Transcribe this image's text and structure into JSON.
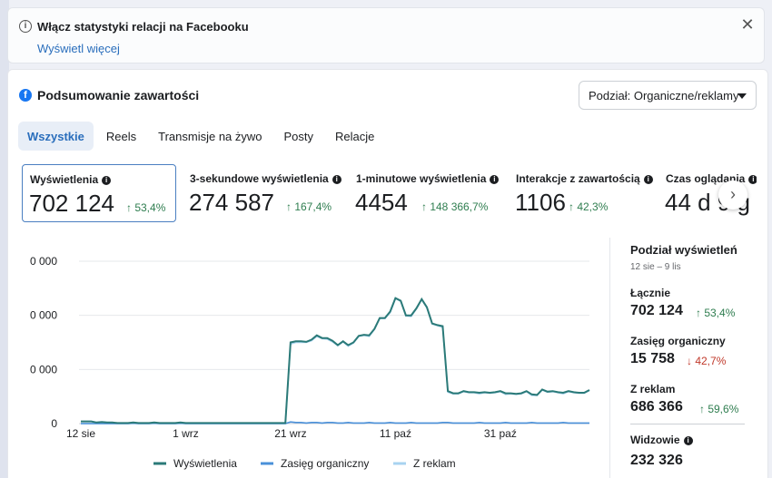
{
  "banner": {
    "title": "Włącz statystyki relacji na Facebooku",
    "link": "Wyświetl więcej",
    "close_icon": "close-icon"
  },
  "card": {
    "title": "Podsumowanie zawartości",
    "dropdown": "Podział: Organiczne/reklamy"
  },
  "tabs": [
    "Wszystkie",
    "Reels",
    "Transmisje na żywo",
    "Posty",
    "Relacje"
  ],
  "metrics": [
    {
      "label": "Wyświetlenia",
      "value": "702 124",
      "change": "↑ 53,4%"
    },
    {
      "label": "3-sekundowe wyświetlenia",
      "value": "274 587",
      "change": "↑ 167,4%"
    },
    {
      "label": "1-minutowe wyświetlenia",
      "value": "4454",
      "change": "↑ 148 366,7%"
    },
    {
      "label": "Interakcje z zawartością",
      "value": "1106",
      "change": "↑ 42,3%"
    },
    {
      "label": "Czas oglądania",
      "value": "44 d 9 g",
      "change": ""
    }
  ],
  "side": {
    "title": "Podział wyświetleń",
    "dates": "12 sie – 9 lis",
    "total_label": "Łącznie",
    "total_value": "702 124",
    "total_change": "↑ 53,4%",
    "organic_label": "Zasięg organiczny",
    "organic_value": "15 758",
    "organic_change": "↓ 42,7%",
    "ads_label": "Z reklam",
    "ads_value": "686 366",
    "ads_change": "↑ 59,6%",
    "viewers_label": "Widzowie",
    "viewers_value": "232 326"
  },
  "chart_data": {
    "type": "line",
    "y_tick_labels": [
      "0 000",
      "0 000",
      "0 000",
      "0"
    ],
    "x_tick_labels": [
      "12 sie",
      "1 wrz",
      "21 wrz",
      "11 paź",
      "31 paź"
    ],
    "series": [
      {
        "name": "Wyświetlenia",
        "color": "#2b7a78",
        "values": [
          4,
          4,
          4,
          2,
          3,
          2,
          2,
          1,
          1,
          1,
          2,
          1,
          1,
          1,
          2,
          1,
          1,
          1,
          1,
          2,
          1,
          1,
          1,
          1,
          1,
          1,
          1,
          1,
          1,
          1,
          1,
          1,
          1,
          1,
          1,
          1,
          1,
          1,
          1,
          1,
          150,
          152,
          152,
          151,
          155,
          163,
          158,
          158,
          153,
          145,
          152,
          145,
          150,
          162,
          164,
          163,
          175,
          195,
          195,
          207,
          232,
          227,
          200,
          200,
          213,
          230,
          215,
          185,
          182,
          180,
          60,
          56,
          56,
          60,
          58,
          58,
          57,
          58,
          57,
          58,
          60,
          56,
          56,
          55,
          56,
          60,
          54,
          53,
          63,
          59,
          60,
          58,
          57,
          60,
          58,
          57,
          57,
          62
        ]
      },
      {
        "name": "Zasięg organiczny",
        "color": "#4a90d9",
        "values": [
          0,
          0,
          0,
          0,
          0,
          0,
          0,
          0,
          0,
          0,
          1,
          0,
          0,
          0,
          1,
          0,
          0,
          0,
          0,
          1,
          0,
          0,
          0,
          0,
          0,
          0,
          0,
          0,
          0,
          0,
          0,
          0,
          0,
          0,
          0,
          0,
          0,
          0,
          0,
          0,
          3,
          2,
          2,
          1,
          2,
          2,
          1,
          2,
          2,
          1,
          1,
          2,
          1,
          1,
          1,
          2,
          1,
          1,
          1,
          2,
          1,
          1,
          1,
          2,
          1,
          1,
          1,
          1,
          1,
          2,
          2,
          1,
          1,
          1,
          1,
          1,
          2,
          1,
          1,
          1,
          1,
          2,
          1,
          1,
          1,
          1,
          2,
          1,
          1,
          1,
          1,
          1,
          2,
          1,
          1,
          1,
          1,
          1
        ]
      },
      {
        "name": "Z reklam",
        "color": "#a8d3f0",
        "values": [
          0,
          0,
          0,
          0,
          0,
          0,
          0,
          0,
          0,
          0,
          0,
          0,
          0,
          0,
          0,
          0,
          0,
          0,
          0,
          0,
          0,
          0,
          0,
          0,
          0,
          0,
          0,
          0,
          0,
          0,
          0,
          0,
          0,
          0,
          0,
          0,
          0,
          0,
          0,
          0,
          147,
          150,
          150,
          150,
          153,
          161,
          157,
          156,
          151,
          144,
          151,
          143,
          149,
          161,
          163,
          161,
          174,
          194,
          194,
          205,
          231,
          226,
          199,
          198,
          212,
          229,
          214,
          184,
          181,
          178,
          58,
          55,
          55,
          59,
          57,
          57,
          55,
          57,
          56,
          57,
          59,
          54,
          55,
          54,
          55,
          59,
          52,
          52,
          62,
          58,
          59,
          57,
          55,
          59,
          57,
          56,
          56,
          61
        ]
      }
    ],
    "ylim": [
      0,
      330
    ],
    "grid": true,
    "legend_position": "bottom"
  }
}
